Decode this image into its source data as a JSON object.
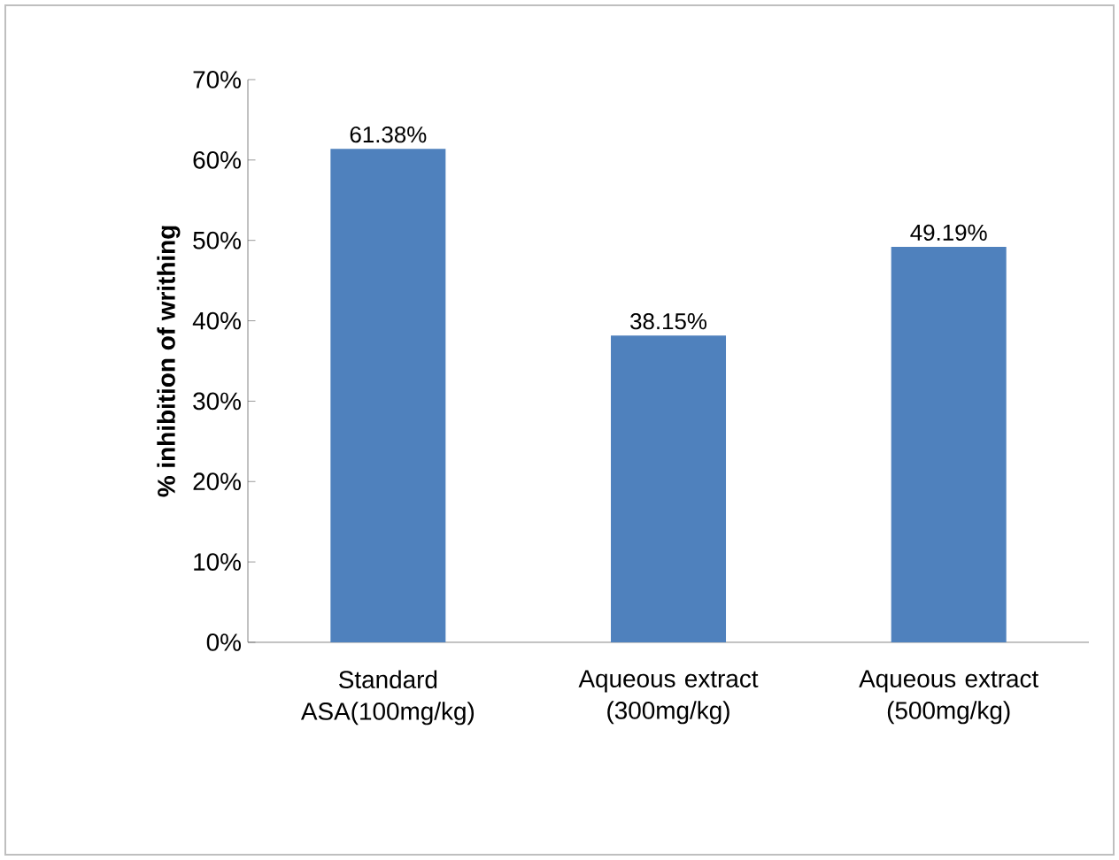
{
  "chart_data": {
    "type": "bar",
    "ylabel": "% inhibition of writhing",
    "categories": [
      "Standard ASA(100mg/kg)",
      "Aqueous extract (300mg/kg)",
      "Aqueous extract (500mg/kg)"
    ],
    "values": [
      61.38,
      38.15,
      49.19
    ],
    "value_labels": [
      "61.38%",
      "38.15%",
      "49.19%"
    ],
    "color": "#4f81bd",
    "ylim": [
      0,
      70
    ],
    "yticks": [
      {
        "value": 0,
        "label": "0%"
      },
      {
        "value": 10,
        "label": "10%"
      },
      {
        "value": 20,
        "label": "20%"
      },
      {
        "value": 30,
        "label": "30%"
      },
      {
        "value": 40,
        "label": "40%"
      },
      {
        "value": 50,
        "label": "50%"
      },
      {
        "value": 60,
        "label": "60%"
      },
      {
        "value": 70,
        "label": "70%"
      }
    ],
    "grid": false
  }
}
